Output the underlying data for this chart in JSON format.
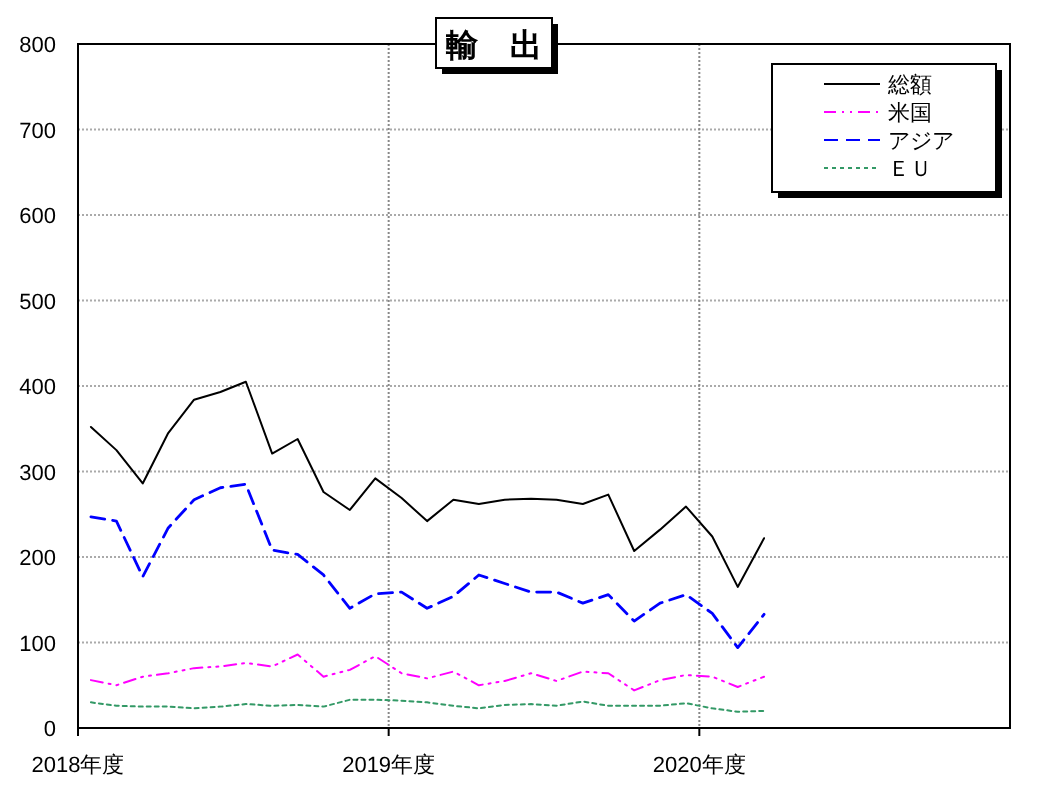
{
  "chart_data": {
    "type": "line",
    "title": "輸　出",
    "x": [
      "2018-04-16",
      "2018-05-16",
      "2018-06-16",
      "2018-07-16",
      "2018-08-16",
      "2018-09-16",
      "2018-10-16",
      "2018-11-16",
      "2018-12-16",
      "2019-01-16",
      "2019-02-15",
      "2019-03-16",
      "2019-04-16",
      "2019-05-16",
      "2019-06-16",
      "2019-07-16",
      "2019-08-16",
      "2019-09-16",
      "2019-10-16",
      "2019-11-16",
      "2019-12-16",
      "2020-01-16",
      "2020-02-15",
      "2020-03-16",
      "2020-04-16",
      "2020-05-16",
      "2020-06-16"
    ],
    "series": [
      {
        "name": "総額",
        "color": "#000000",
        "line_style": "solid",
        "values": [
          352,
          325,
          286,
          345,
          384,
          393,
          405,
          321,
          338,
          276,
          255,
          292,
          269,
          242,
          267,
          262,
          267,
          268,
          267,
          262,
          273,
          207,
          232,
          259,
          224,
          165,
          222
        ]
      },
      {
        "name": "米国",
        "color": "#ff00ff",
        "line_style": "dashdotdot",
        "values": [
          56,
          50,
          60,
          64,
          70,
          72,
          76,
          72,
          86,
          60,
          68,
          84,
          64,
          58,
          66,
          50,
          55,
          64,
          55,
          66,
          64,
          44,
          56,
          62,
          60,
          48,
          60
        ]
      },
      {
        "name": "アジア",
        "color": "#0000ff",
        "line_style": "dashed",
        "values": [
          247,
          242,
          177,
          234,
          267,
          281,
          285,
          208,
          203,
          179,
          140,
          157,
          159,
          140,
          154,
          179,
          169,
          159,
          159,
          146,
          156,
          125,
          146,
          156,
          134,
          94,
          133
        ]
      },
      {
        "name": "ＥＵ",
        "color": "#339966",
        "line_style": "dotted",
        "values": [
          30,
          26,
          25,
          25,
          23,
          25,
          28,
          26,
          27,
          25,
          33,
          33,
          32,
          30,
          26,
          23,
          27,
          28,
          26,
          31,
          26,
          26,
          26,
          29,
          23,
          19,
          20
        ]
      }
    ],
    "xlim": [
      "2018-04",
      "2021-04"
    ],
    "xticks": [
      {
        "value": "2018-04",
        "label": "2018年度"
      },
      {
        "value": "2019-04",
        "label": "2019年度"
      },
      {
        "value": "2020-04",
        "label": "2020年度"
      }
    ],
    "ylim": [
      0,
      800
    ],
    "yticks": [
      0,
      100,
      200,
      300,
      400,
      500,
      600,
      700,
      800
    ],
    "grid": true,
    "legend": "top right"
  }
}
